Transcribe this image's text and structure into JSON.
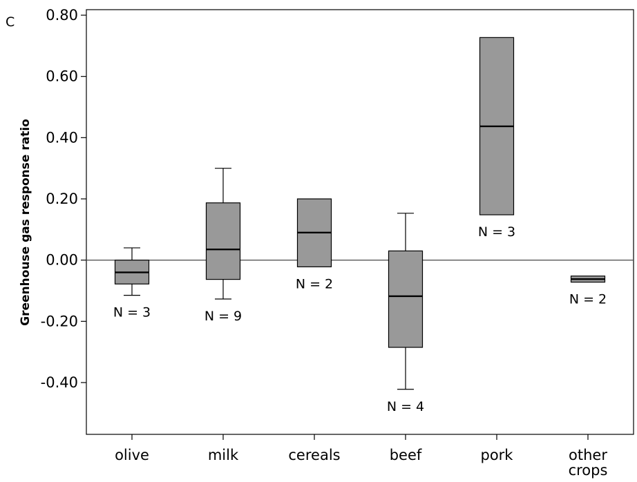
{
  "chart_data": {
    "type": "boxplot",
    "panel_label": "C",
    "title": "",
    "xlabel": "",
    "ylabel": "Greenhouse gas response ratio",
    "ylim": [
      -0.56,
      0.82
    ],
    "yticks": [
      "0.80",
      "0.60",
      "0.40",
      "0.20",
      "0.00",
      "-0.20",
      "-0.40"
    ],
    "ytick_values": [
      0.8,
      0.6,
      0.4,
      0.2,
      0.0,
      -0.2,
      -0.4
    ],
    "reference_line": 0.0,
    "grid": false,
    "legend": "none",
    "box_color": "#999999",
    "categories": [
      {
        "label": [
          "olive"
        ],
        "n_label": "N = 3",
        "min": -0.115,
        "q1": -0.078,
        "median": -0.04,
        "q3": 0.0,
        "max": 0.04
      },
      {
        "label": [
          "milk"
        ],
        "n_label": "N = 9",
        "min": -0.127,
        "q1": -0.063,
        "median": 0.035,
        "q3": 0.187,
        "max": 0.3
      },
      {
        "label": [
          "cereals"
        ],
        "n_label": "N = 2",
        "min": -0.022,
        "q1": -0.022,
        "median": 0.09,
        "q3": 0.2,
        "max": 0.2
      },
      {
        "label": [
          "beef"
        ],
        "n_label": "N = 4",
        "min": -0.422,
        "q1": -0.285,
        "median": -0.118,
        "q3": 0.03,
        "max": 0.153
      },
      {
        "label": [
          "pork"
        ],
        "n_label": "N = 3",
        "min": 0.148,
        "q1": 0.148,
        "median": 0.437,
        "q3": 0.727,
        "max": 0.727
      },
      {
        "label": [
          "other",
          "crops"
        ],
        "n_label": "N = 2",
        "min": -0.072,
        "q1": -0.072,
        "median": -0.062,
        "q3": -0.052,
        "max": -0.052
      }
    ]
  }
}
